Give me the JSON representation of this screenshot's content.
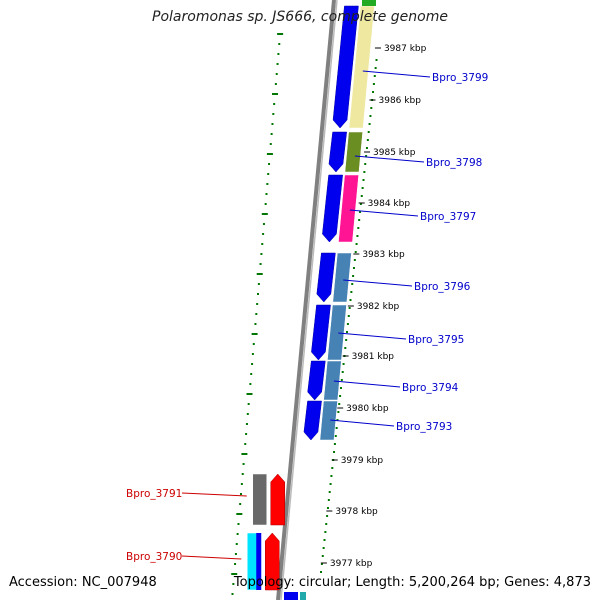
{
  "title": "Polaromonas sp. JS666, complete genome",
  "footer": {
    "accession_label": "Accession: NC_007948",
    "summary": "Topology: circular; Length: 5,200,264 bp; Genes: 4,873"
  },
  "colors": {
    "backbone": "#808080",
    "dots": "#007700",
    "ticks": "#000000",
    "forward_gene_label": "#0000cc",
    "reverse_gene_label": "#cc0000"
  },
  "ticks": [
    "3987 kbp",
    "3986 kbp",
    "3985 kbp",
    "3984 kbp",
    "3983 kbp",
    "3982 kbp",
    "3981 kbp",
    "3980 kbp",
    "3979 kbp",
    "3978 kbp",
    "3977 kbp"
  ],
  "genes": [
    {
      "label": "Bpro_3799",
      "strand": "forward",
      "cog_color": "#eee8a0"
    },
    {
      "label": "Bpro_3798",
      "strand": "forward",
      "cog_color": "#6b8e23"
    },
    {
      "label": "Bpro_3797",
      "strand": "forward",
      "cog_color": "#ff1493"
    },
    {
      "label": "Bpro_3796",
      "strand": "forward",
      "cog_color": "#4682b4"
    },
    {
      "label": "Bpro_3795",
      "strand": "forward",
      "cog_color": "#4682b4"
    },
    {
      "label": "Bpro_3794",
      "strand": "forward",
      "cog_color": "#4682b4"
    },
    {
      "label": "Bpro_3793",
      "strand": "forward",
      "cog_color": "#4682b4"
    },
    {
      "label": "Bpro_3791",
      "strand": "reverse",
      "cog_color": "#696969"
    },
    {
      "label": "Bpro_3790",
      "strand": "reverse",
      "cog_color": "#00e5ff"
    }
  ]
}
